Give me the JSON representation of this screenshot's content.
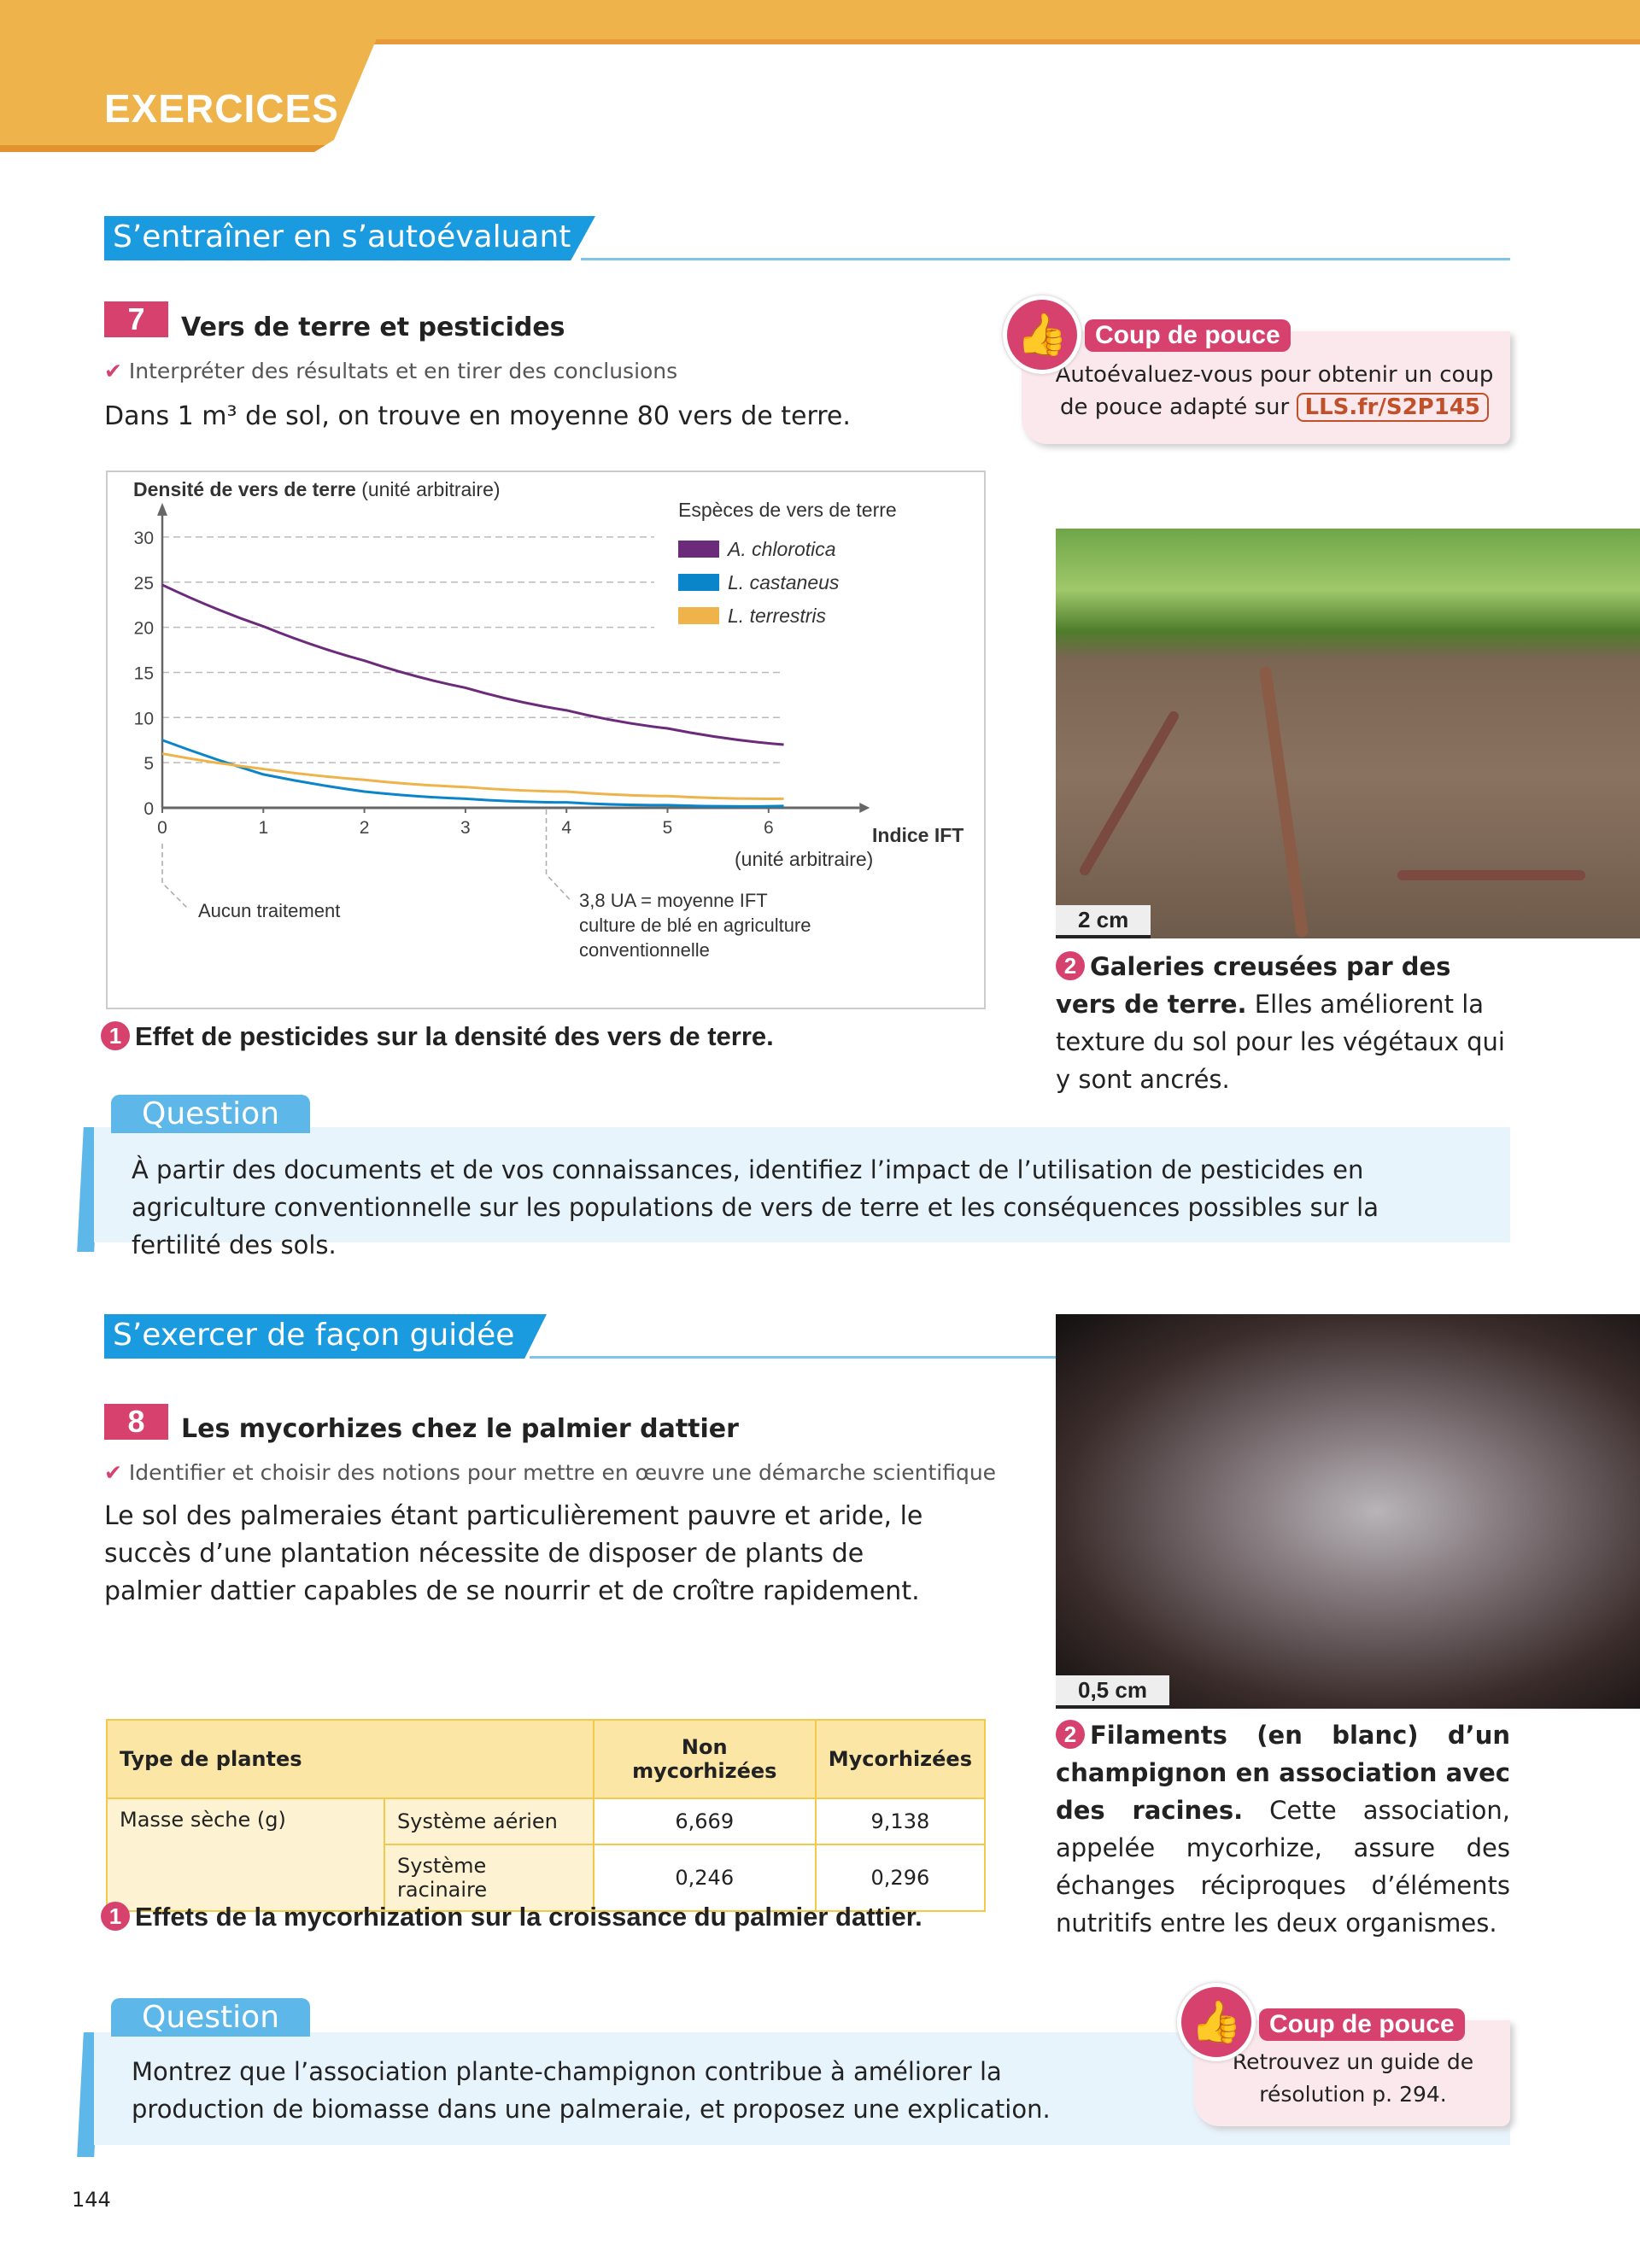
{
  "header": {
    "title": "EXERCICES"
  },
  "section1": {
    "title": "S’entraîner en s’autoévaluant"
  },
  "ex7": {
    "number": "7",
    "title": "Vers de terre et pesticides",
    "skill": "Interpréter des résultats et en tirer des conclusions",
    "intro": "Dans 1 m³ de sol, on trouve en moyenne 80 vers de terre.",
    "coup_de_pouce": {
      "label": "Coup de pouce",
      "text": "Autoévaluez-vous pour obtenir un coup de pouce adapté sur",
      "link": "LLS.fr/S2P145"
    },
    "doc1_number": "1",
    "doc1_caption": "Effet de pesticides sur la densité des vers de terre.",
    "doc2_number": "2",
    "doc2_scale": "2 cm",
    "doc2_caption_bold": "Galeries creusées par des vers de terre.",
    "doc2_caption": " Elles améliorent la texture du sol pour les végétaux qui y sont ancrés.",
    "question_label": "Question",
    "question": "À partir des documents et de vos connaissances, identifiez l’impact de l’utilisation de pesticides en agriculture conventionnelle sur les populations de vers de terre et les conséquences possibles sur la fertilité des sols."
  },
  "chart_data": {
    "type": "line",
    "ylabel_bold": "Densité de vers de terre",
    "ylabel_unit": "(unité arbitraire)",
    "xlabel_bold": "Indice IFT",
    "xlabel_unit": "(unité arbitraire)",
    "xlim": [
      0,
      6
    ],
    "ylim": [
      0,
      30
    ],
    "xticks": [
      "0",
      "1",
      "2",
      "3",
      "4",
      "5",
      "6"
    ],
    "yticks": [
      "0",
      "5",
      "10",
      "15",
      "20",
      "25",
      "30"
    ],
    "grid": "horizontal dashed",
    "legend_title": "Espèces de vers de terre",
    "legend_position": "top-right",
    "x": [
      0,
      1,
      2,
      3,
      4,
      5,
      6.15
    ],
    "series": [
      {
        "name": "A. chlorotica",
        "color": "#6b2a7a",
        "values": [
          24.7,
          20.1,
          16.3,
          13.3,
          10.8,
          8.8,
          7.0
        ]
      },
      {
        "name": "L. castaneus",
        "color": "#0a85c9",
        "values": [
          7.5,
          3.7,
          1.8,
          1.0,
          0.6,
          0.3,
          0.2
        ]
      },
      {
        "name": "L. terrestris",
        "color": "#eeb34a",
        "values": [
          6.0,
          4.3,
          3.1,
          2.3,
          1.8,
          1.3,
          1.0
        ]
      }
    ],
    "annotations": [
      {
        "x": 0,
        "text": "Aucun traitement"
      },
      {
        "x": 3.8,
        "text_lines": [
          "3,8 UA = moyenne IFT",
          "culture de blé en agriculture",
          "conventionnelle"
        ]
      }
    ]
  },
  "section2": {
    "title": "S’exercer de façon guidée"
  },
  "ex8": {
    "number": "8",
    "title": "Les mycorhizes chez le palmier dattier",
    "skill": "Identifier et choisir des notions pour mettre en œuvre une démarche scientifique",
    "intro": "Le sol des palmeraies étant particulièrement pauvre et aride, le succès d’une plantation nécessite de disposer de plants de palmier dattier capables de se nourrir et de croître rapidement.",
    "table": {
      "headers": [
        "Type de plantes",
        "Non mycorhizées",
        "Mycorhizées"
      ],
      "row_label": "Masse sèche (g)",
      "rows": [
        {
          "sub": "Système aérien",
          "non": "6,669",
          "myc": "9,138"
        },
        {
          "sub": "Système racinaire",
          "non": "0,246",
          "myc": "0,296"
        }
      ]
    },
    "doc1_number": "1",
    "doc1_caption": "Effets de la mycorhization sur la croissance du palmier dattier.",
    "doc2_number": "2",
    "doc2_scale": "0,5 cm",
    "doc2_caption_bold": "Filaments (en blanc) d’un champignon en association avec des racines.",
    "doc2_caption": " Cette association, appelée mycorhize, assure des échanges réciproques d’éléments nutritifs entre les deux organismes.",
    "question_label": "Question",
    "question": "Montrez que l’association plante-champignon contribue à améliorer la production de biomasse dans une palmeraie, et proposez une explication.",
    "coup_de_pouce": {
      "label": "Coup de pouce",
      "text": "Retrouvez un guide de résolution p. 294."
    }
  },
  "footer": {
    "page_number": "144"
  },
  "colors": {
    "accent_orange": "#eeb34a",
    "accent_pink": "#d6416e",
    "accent_blue": "#1a9be0"
  }
}
